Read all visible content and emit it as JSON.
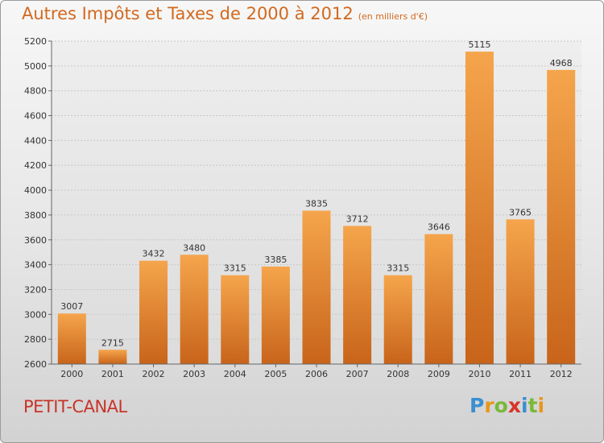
{
  "header": {
    "title": "Autres Impôts et Taxes de 2000 à 2012",
    "subtitle": "(en milliers d'€)"
  },
  "footer": {
    "town": "PETIT-CANAL",
    "logo_letters": [
      "P",
      "r",
      "o",
      "x",
      "i",
      "t",
      "i"
    ],
    "logo_colors": [
      "#3a8fd0",
      "#e8961e",
      "#7ab838",
      "#d9332a",
      "#3a8fd0",
      "#7ab838",
      "#e8961e"
    ]
  },
  "chart_data": {
    "type": "bar",
    "categories": [
      "2000",
      "2001",
      "2002",
      "2003",
      "2004",
      "2005",
      "2006",
      "2007",
      "2008",
      "2009",
      "2010",
      "2011",
      "2012"
    ],
    "values": [
      3007,
      2715,
      3432,
      3480,
      3315,
      3385,
      3835,
      3712,
      3315,
      3646,
      5115,
      3765,
      4968
    ],
    "ylim": [
      2600,
      5200
    ],
    "yticks": [
      2600,
      2800,
      3000,
      3200,
      3400,
      3600,
      3800,
      4000,
      4200,
      4400,
      4600,
      4800,
      5000,
      5200
    ],
    "grid": true,
    "bar_color_top": "#f5a54c",
    "bar_color_bottom": "#c8641a"
  }
}
